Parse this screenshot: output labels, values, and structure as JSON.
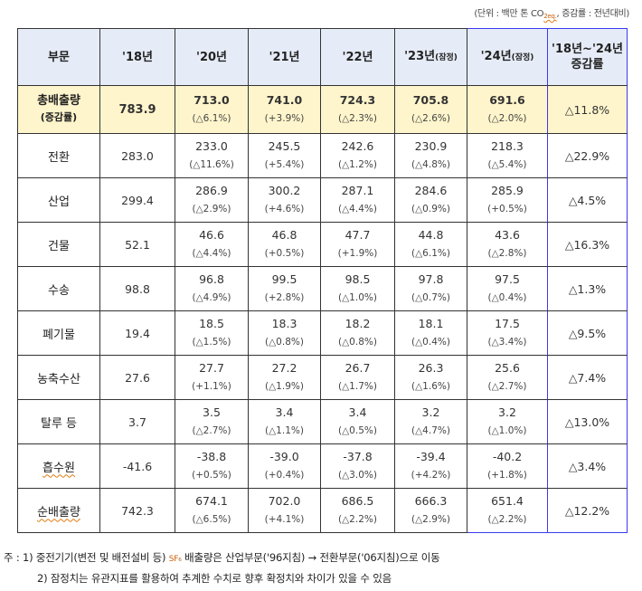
{
  "unit_note": {
    "prefix": "(단위 : 백만 톤 CO",
    "subscript": "2eq.",
    "suffix": ", 증감률 : 전년대비)"
  },
  "table": {
    "headers": [
      "부문",
      "'18년",
      "'20년",
      "'21년",
      "'22년",
      "'23년(잠정)",
      "'24년(잠정)",
      "'18년~'24년 증감률"
    ],
    "header_rate_line1": "'18년~'24년",
    "header_rate_line2": "증감률",
    "header_23_main": "'23년",
    "header_23_sub": "(잠정)",
    "header_24_main": "'24년",
    "header_24_sub": "(잠정)",
    "total": {
      "sector_line1": "총배출량",
      "sector_line2": "(증감률)",
      "y18": "783.9",
      "cells": [
        {
          "val": "713.0",
          "chg": "(△6.1%)"
        },
        {
          "val": "741.0",
          "chg": "(+3.9%)"
        },
        {
          "val": "724.3",
          "chg": "(△2.3%)"
        },
        {
          "val": "705.8",
          "chg": "(△2.6%)"
        },
        {
          "val": "691.6",
          "chg": "(△2.0%)"
        }
      ],
      "rate": "△11.8%"
    },
    "rows": [
      {
        "sector": "전환",
        "y18": "283.0",
        "cells": [
          {
            "val": "233.0",
            "chg": "(△11.6%)"
          },
          {
            "val": "245.5",
            "chg": "(+5.4%)"
          },
          {
            "val": "242.6",
            "chg": "(△1.2%)"
          },
          {
            "val": "230.9",
            "chg": "(△4.8%)"
          },
          {
            "val": "218.3",
            "chg": "(△5.4%)"
          }
        ],
        "rate": "△22.9%"
      },
      {
        "sector": "산업",
        "y18": "299.4",
        "cells": [
          {
            "val": "286.9",
            "chg": "(△2.9%)"
          },
          {
            "val": "300.2",
            "chg": "(+4.6%)"
          },
          {
            "val": "287.1",
            "chg": "(△4.4%)"
          },
          {
            "val": "284.6",
            "chg": "(△0.9%)"
          },
          {
            "val": "285.9",
            "chg": "(+0.5%)"
          }
        ],
        "rate": "△4.5%"
      },
      {
        "sector": "건물",
        "y18": "52.1",
        "cells": [
          {
            "val": "46.6",
            "chg": "(△4.4%)"
          },
          {
            "val": "46.8",
            "chg": "(+0.5%)"
          },
          {
            "val": "47.7",
            "chg": "(+1.9%)"
          },
          {
            "val": "44.8",
            "chg": "(△6.1%)"
          },
          {
            "val": "43.6",
            "chg": "(△2.8%)"
          }
        ],
        "rate": "△16.3%"
      },
      {
        "sector": "수송",
        "y18": "98.8",
        "cells": [
          {
            "val": "96.8",
            "chg": "(△4.9%)"
          },
          {
            "val": "99.5",
            "chg": "(+2.8%)"
          },
          {
            "val": "98.5",
            "chg": "(△1.0%)"
          },
          {
            "val": "97.8",
            "chg": "(△0.7%)"
          },
          {
            "val": "97.5",
            "chg": "(△0.4%)"
          }
        ],
        "rate": "△1.3%"
      },
      {
        "sector": "폐기물",
        "y18": "19.4",
        "cells": [
          {
            "val": "18.5",
            "chg": "(△1.5%)"
          },
          {
            "val": "18.3",
            "chg": "(△0.8%)"
          },
          {
            "val": "18.2",
            "chg": "(△0.8%)"
          },
          {
            "val": "18.1",
            "chg": "(△0.4%)"
          },
          {
            "val": "17.5",
            "chg": "(△3.4%)"
          }
        ],
        "rate": "△9.5%"
      },
      {
        "sector": "농축수산",
        "y18": "27.6",
        "cells": [
          {
            "val": "27.7",
            "chg": "(+1.1%)"
          },
          {
            "val": "27.2",
            "chg": "(△1.9%)"
          },
          {
            "val": "26.7",
            "chg": "(△1.7%)"
          },
          {
            "val": "26.3",
            "chg": "(△1.6%)"
          },
          {
            "val": "25.6",
            "chg": "(△2.7%)"
          }
        ],
        "rate": "△7.4%"
      },
      {
        "sector": "탈루 등",
        "y18": "3.7",
        "cells": [
          {
            "val": "3.5",
            "chg": "(△2.7%)"
          },
          {
            "val": "3.4",
            "chg": "(△1.1%)"
          },
          {
            "val": "3.4",
            "chg": "(△0.5%)"
          },
          {
            "val": "3.2",
            "chg": "(△4.7%)"
          },
          {
            "val": "3.2",
            "chg": "(△1.0%)"
          }
        ],
        "rate": "△13.0%"
      },
      {
        "sector": "흡수원",
        "y18": "-41.6",
        "cells": [
          {
            "val": "-38.8",
            "chg": "(+0.5%)"
          },
          {
            "val": "-39.0",
            "chg": "(+0.4%)"
          },
          {
            "val": "-37.8",
            "chg": "(△3.0%)"
          },
          {
            "val": "-39.4",
            "chg": "(+4.2%)"
          },
          {
            "val": "-40.2",
            "chg": "(+1.8%)"
          }
        ],
        "rate": "△3.4%"
      },
      {
        "sector": "순배출량",
        "y18": "742.3",
        "cells": [
          {
            "val": "674.1",
            "chg": "(△6.5%)"
          },
          {
            "val": "702.0",
            "chg": "(+4.1%)"
          },
          {
            "val": "686.5",
            "chg": "(△2.2%)"
          },
          {
            "val": "666.3",
            "chg": "(△2.9%)"
          },
          {
            "val": "651.4",
            "chg": "(△2.2%)"
          }
        ],
        "rate": "△12.2%"
      }
    ]
  },
  "notes": {
    "line1_prefix": "주 : 1) 중전기기(변전 및 배전설비 등) ",
    "line1_sf": "SF₆",
    "line1_suffix": " 배출량은 산업부문('96지침) → 전환부문('06지침)으로 이동",
    "line2": "2) 잠정치는 유관지표를 활용하여 추계한 수치로 향후 확정치와 차이가 있을 수 있음"
  }
}
